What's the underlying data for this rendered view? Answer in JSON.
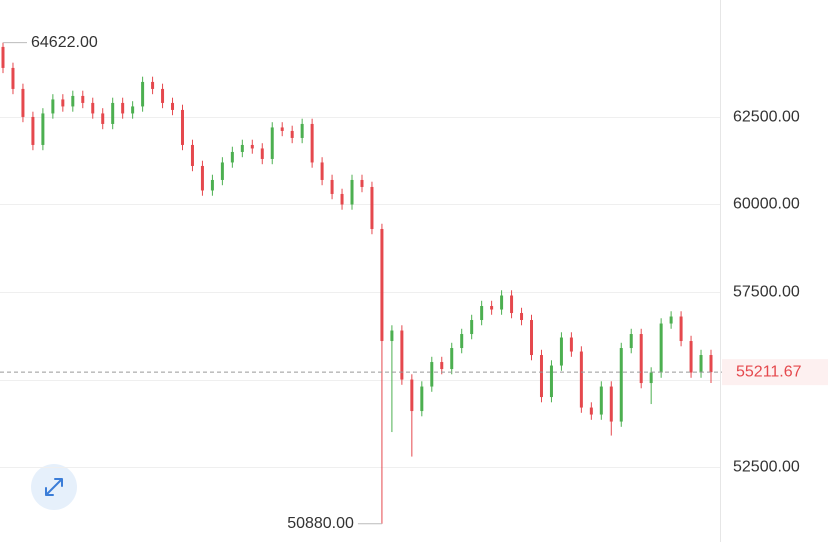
{
  "chart_data": {
    "type": "candlestick",
    "up_color": "#4caf50",
    "down_color": "#e5484d",
    "grid": true,
    "ylim": [
      50360,
      65840
    ],
    "yticks": [
      {
        "value": 52500,
        "label": "52500.00"
      },
      55000,
      {
        "value": 57500,
        "label": "57500.00"
      },
      {
        "value": 60000,
        "label": "60000.00"
      },
      {
        "value": 62500,
        "label": "62500.00"
      }
    ],
    "high_marker": {
      "value": 64622,
      "label": "64622.00"
    },
    "low_marker": {
      "value": 50880,
      "label": "50880.00"
    },
    "last_price": 55211.67,
    "open": [
      64500,
      63900,
      63300,
      62500,
      61700,
      62600,
      63000,
      62800,
      63100,
      62900,
      62600,
      62300,
      62900,
      62600,
      62800,
      63500,
      63300,
      62900,
      62700,
      61700,
      61100,
      60400,
      60700,
      61200,
      61500,
      61700,
      61600,
      61300,
      62200,
      62100,
      61900,
      62300,
      61200,
      60700,
      60300,
      60000,
      60700,
      60500,
      59300,
      56100,
      56400,
      55000,
      54100,
      54800,
      55500,
      55300,
      55900,
      56300,
      56700,
      57100,
      57000,
      57400,
      56900,
      56700,
      55700,
      54500,
      55400,
      56200,
      55800,
      54200,
      54000,
      54800,
      53800,
      55900,
      56300,
      54900,
      55200,
      56600,
      56800,
      56100,
      55200,
      55700
    ],
    "high": [
      64622,
      64050,
      63450,
      62650,
      62750,
      63150,
      63150,
      63250,
      63250,
      63050,
      62750,
      63050,
      63050,
      62950,
      63650,
      63650,
      63450,
      63050,
      62850,
      61850,
      61250,
      60850,
      61350,
      61650,
      61850,
      61850,
      61750,
      62350,
      62350,
      62250,
      62450,
      62450,
      61350,
      60850,
      60450,
      60850,
      60850,
      60650,
      59450,
      56550,
      56550,
      55150,
      54950,
      55650,
      55650,
      56050,
      56450,
      56850,
      57250,
      57250,
      57550,
      57550,
      57050,
      56850,
      55850,
      55550,
      56350,
      56350,
      55950,
      54350,
      54950,
      54950,
      56050,
      56450,
      56450,
      55350,
      56750,
      56950,
      56950,
      56250,
      55850,
      55850
    ],
    "low": [
      63750,
      63150,
      62350,
      61550,
      61550,
      62450,
      62650,
      62650,
      62750,
      62450,
      62150,
      62150,
      62450,
      62450,
      62650,
      63150,
      62750,
      62550,
      61550,
      60950,
      60250,
      60250,
      60550,
      61050,
      61350,
      61450,
      61150,
      61150,
      61950,
      61750,
      61750,
      61050,
      60550,
      60150,
      59850,
      59850,
      60350,
      59150,
      50880,
      53500,
      54850,
      52800,
      53950,
      54650,
      55150,
      55150,
      55750,
      56150,
      56550,
      56850,
      56850,
      56750,
      56550,
      55550,
      54350,
      54350,
      55250,
      55650,
      54050,
      53850,
      53850,
      53400,
      53650,
      55750,
      54750,
      54300,
      55050,
      56450,
      55950,
      55050,
      55050,
      54900
    ],
    "close": [
      63900,
      63300,
      62500,
      61700,
      62600,
      63000,
      62800,
      63100,
      62900,
      62600,
      62300,
      62900,
      62600,
      62800,
      63500,
      63300,
      62900,
      62700,
      61700,
      61100,
      60400,
      60700,
      61200,
      61500,
      61700,
      61600,
      61300,
      62200,
      62100,
      61900,
      62300,
      61200,
      60700,
      60300,
      60000,
      60700,
      60500,
      59300,
      56100,
      56400,
      55000,
      54100,
      54800,
      55500,
      55300,
      55900,
      56300,
      56700,
      57100,
      57000,
      57400,
      56900,
      56700,
      55700,
      54500,
      55400,
      56200,
      55800,
      54200,
      54000,
      54800,
      53800,
      55900,
      56300,
      54900,
      55200,
      56600,
      56800,
      56100,
      55200,
      55700,
      55211.67
    ]
  }
}
